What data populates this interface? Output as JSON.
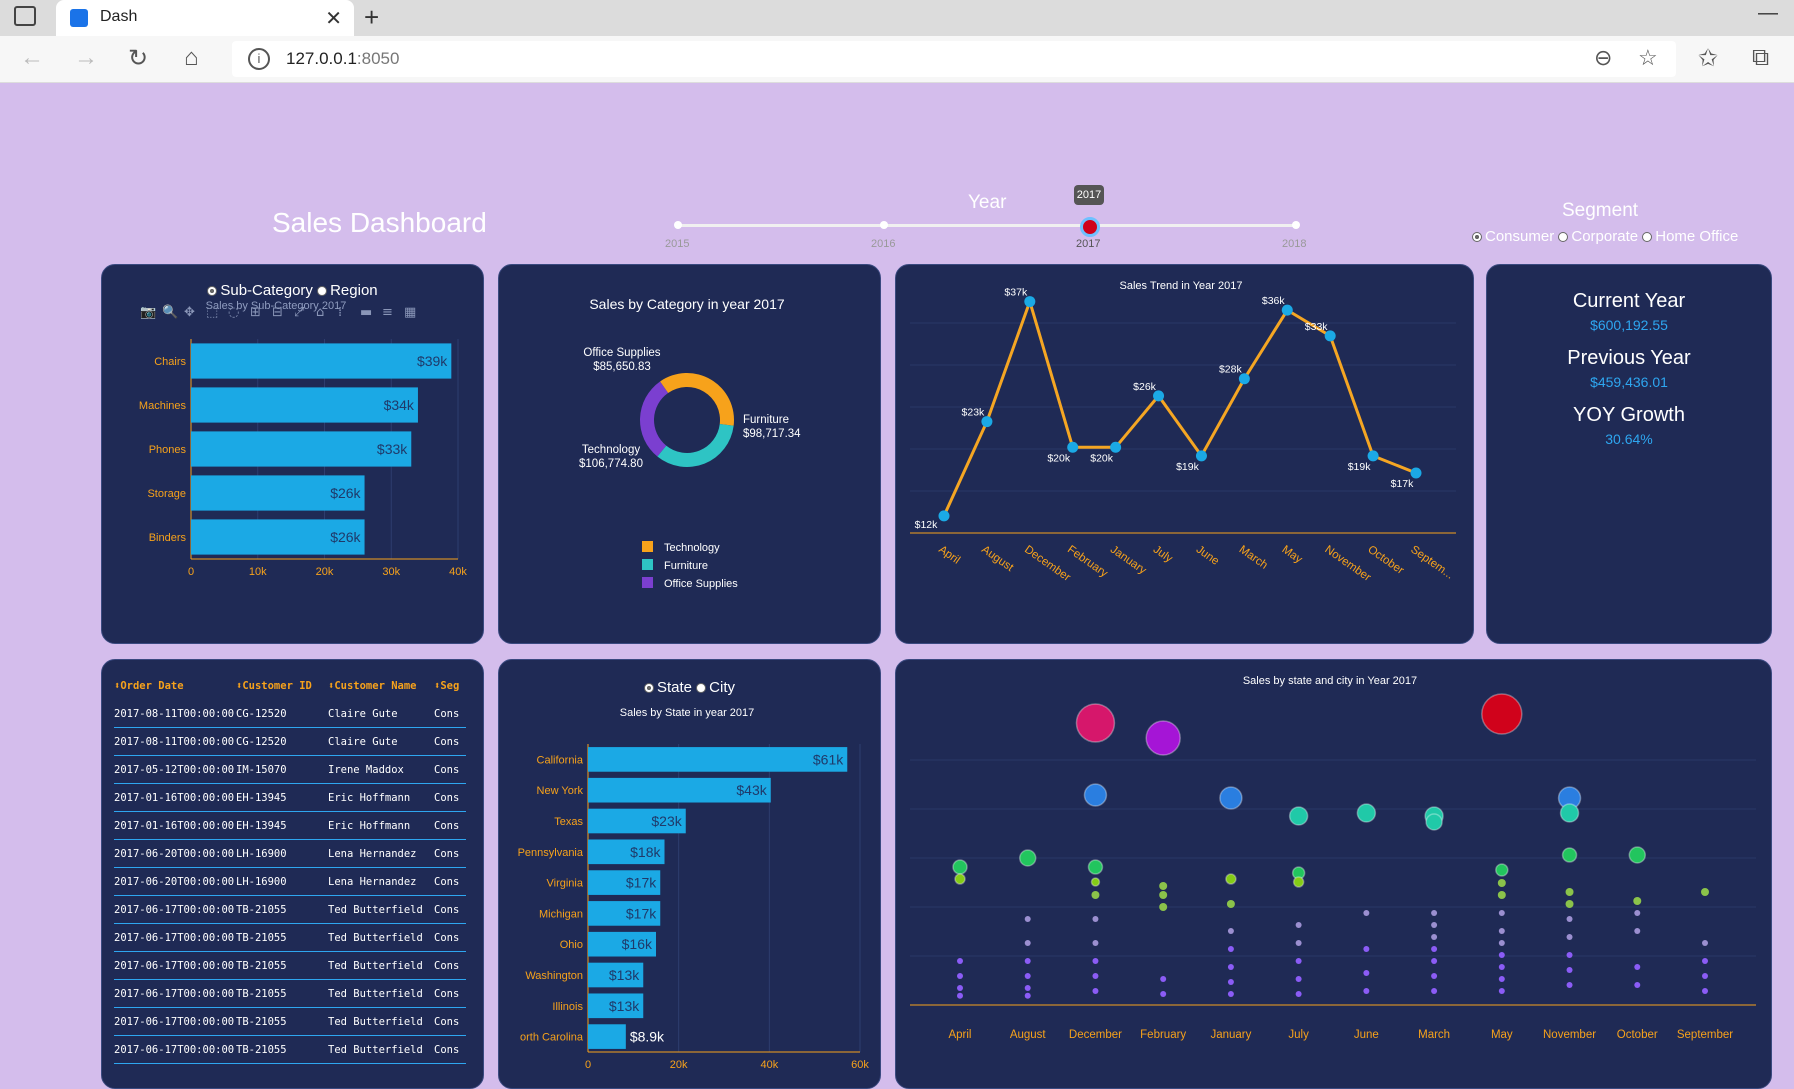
{
  "browser": {
    "tab_title": "Dash",
    "url_host": "127.0.0.1",
    "url_port": ":8050"
  },
  "header": {
    "title": "Sales Dashboard"
  },
  "year_slider": {
    "label": "Year",
    "marks": [
      "2015",
      "2016",
      "2017",
      "2018"
    ],
    "selected": "2017"
  },
  "segment": {
    "label": "Segment",
    "options": [
      "Consumer",
      "Corporate",
      "Home Office"
    ],
    "selected": "Consumer"
  },
  "subcat_card": {
    "radio_options": [
      "Sub-Category",
      "Region"
    ],
    "selected": "Sub-Category",
    "title": "Sales by Sub-Category 2017"
  },
  "kpi": {
    "current_label": "Current Year",
    "current_value": "$600,192.55",
    "previous_label": "Previous Year",
    "previous_value": "$459,436.01",
    "growth_label": "YOY Growth",
    "growth_value": "30.64%"
  },
  "table": {
    "headers": [
      "⬍Order Date",
      "⬍Customer ID",
      "⬍Customer Name",
      "⬍Seg"
    ],
    "rows": [
      [
        "2017-08-11T00:00:00",
        "CG-12520",
        "Claire Gute",
        "Cons"
      ],
      [
        "2017-08-11T00:00:00",
        "CG-12520",
        "Claire Gute",
        "Cons"
      ],
      [
        "2017-05-12T00:00:00",
        "IM-15070",
        "Irene Maddox",
        "Cons"
      ],
      [
        "2017-01-16T00:00:00",
        "EH-13945",
        "Eric Hoffmann",
        "Cons"
      ],
      [
        "2017-01-16T00:00:00",
        "EH-13945",
        "Eric Hoffmann",
        "Cons"
      ],
      [
        "2017-06-20T00:00:00",
        "LH-16900",
        "Lena Hernandez",
        "Cons"
      ],
      [
        "2017-06-20T00:00:00",
        "LH-16900",
        "Lena Hernandez",
        "Cons"
      ],
      [
        "2017-06-17T00:00:00",
        "TB-21055",
        "Ted Butterfield",
        "Cons"
      ],
      [
        "2017-06-17T00:00:00",
        "TB-21055",
        "Ted Butterfield",
        "Cons"
      ],
      [
        "2017-06-17T00:00:00",
        "TB-21055",
        "Ted Butterfield",
        "Cons"
      ],
      [
        "2017-06-17T00:00:00",
        "TB-21055",
        "Ted Butterfield",
        "Cons"
      ],
      [
        "2017-06-17T00:00:00",
        "TB-21055",
        "Ted Butterfield",
        "Cons"
      ],
      [
        "2017-06-17T00:00:00",
        "TB-21055",
        "Ted Butterfield",
        "Cons"
      ]
    ]
  },
  "state_card": {
    "radio_options": [
      "State",
      "City"
    ],
    "selected": "State"
  },
  "colors": {
    "bar": "#1ba9e5",
    "line": "#f5a623",
    "accent": "#f7a21b",
    "card": "#1f2a55"
  },
  "chart_data": [
    {
      "type": "bar",
      "orientation": "horizontal",
      "title": "Sales by Sub-Category 2017",
      "categories": [
        "Chairs",
        "Machines",
        "Phones",
        "Storage",
        "Binders"
      ],
      "values": [
        39000,
        34000,
        33000,
        26000,
        26000
      ],
      "labels": [
        "$39k",
        "$34k",
        "$33k",
        "$26k",
        "$26k"
      ],
      "xticks": [
        "0",
        "10k",
        "20k",
        "30k",
        "40k"
      ],
      "xlim": [
        0,
        40000
      ]
    },
    {
      "type": "pie",
      "title": "Sales by Category in year 2017",
      "labels": [
        "Technology",
        "Furniture",
        "Office Supplies"
      ],
      "values": [
        106774.8,
        98717.34,
        85650.83
      ],
      "value_labels": [
        "$106,774.80",
        "$98,717.34",
        "$85,650.83"
      ],
      "colors": [
        "#f7a21b",
        "#2ec4c4",
        "#7b3fd0"
      ],
      "legend": [
        "Technology",
        "Furniture",
        "Office Supplies"
      ]
    },
    {
      "type": "line",
      "title": "Sales Trend in Year 2017",
      "categories": [
        "April",
        "August",
        "December",
        "February",
        "January",
        "July",
        "June",
        "March",
        "May",
        "November",
        "October",
        "Septem..."
      ],
      "values": [
        12,
        23,
        37,
        20,
        20,
        26,
        19,
        28,
        36,
        33,
        19,
        17
      ],
      "labels": [
        "$12k",
        "$23k",
        "$37k",
        "$20k",
        "$20k",
        "$26k",
        "$19k",
        "$28k",
        "$36k",
        "$33k",
        "$19k",
        "$17k"
      ],
      "ylim": [
        10,
        38
      ]
    },
    {
      "type": "bar",
      "orientation": "horizontal",
      "title": "Sales by State in year 2017",
      "categories": [
        "California",
        "New York",
        "Texas",
        "Pennsylvania",
        "Virginia",
        "Michigan",
        "Ohio",
        "Washington",
        "Illinois",
        "orth Carolina"
      ],
      "values": [
        61000,
        43000,
        23000,
        18000,
        17000,
        17000,
        16000,
        13000,
        13000,
        8900
      ],
      "labels": [
        "$61k",
        "$43k",
        "$23k",
        "$18k",
        "$17k",
        "$17k",
        "$16k",
        "$13k",
        "$13k",
        "$8.9k"
      ],
      "xticks": [
        "0",
        "20k",
        "40k",
        "60k"
      ],
      "xlim": [
        0,
        64000
      ]
    },
    {
      "type": "scatter",
      "title": "Sales by state and city in Year 2017",
      "categories": [
        "April",
        "August",
        "December",
        "February",
        "January",
        "July",
        "June",
        "March",
        "May",
        "November",
        "October",
        "September"
      ],
      "points": [
        {
          "x": "April",
          "y": 230,
          "r": 7,
          "c": "#22c55e"
        },
        {
          "x": "April",
          "y": 210,
          "r": 5,
          "c": "#84cc16"
        },
        {
          "x": "August",
          "y": 245,
          "r": 8,
          "c": "#22c55e"
        },
        {
          "x": "December",
          "y": 470,
          "r": 19,
          "c": "#d6176b"
        },
        {
          "x": "December",
          "y": 350,
          "r": 11,
          "c": "#2a7ee0"
        },
        {
          "x": "December",
          "y": 230,
          "r": 7,
          "c": "#22c55e"
        },
        {
          "x": "December",
          "y": 205,
          "r": 4,
          "c": "#84cc16"
        },
        {
          "x": "February",
          "y": 445,
          "r": 17,
          "c": "#a515d6"
        },
        {
          "x": "January",
          "y": 345,
          "r": 11,
          "c": "#2a7ee0"
        },
        {
          "x": "January",
          "y": 210,
          "r": 5,
          "c": "#84cc16"
        },
        {
          "x": "July",
          "y": 315,
          "r": 9,
          "c": "#20c9a8"
        },
        {
          "x": "July",
          "y": 220,
          "r": 6,
          "c": "#22c55e"
        },
        {
          "x": "July",
          "y": 205,
          "r": 5,
          "c": "#84cc16"
        },
        {
          "x": "June",
          "y": 320,
          "r": 9,
          "c": "#20c9a8"
        },
        {
          "x": "March",
          "y": 315,
          "r": 9,
          "c": "#20c9a8"
        },
        {
          "x": "March",
          "y": 305,
          "r": 8,
          "c": "#20c9a8"
        },
        {
          "x": "May",
          "y": 485,
          "r": 20,
          "c": "#d0021b"
        },
        {
          "x": "May",
          "y": 225,
          "r": 6,
          "c": "#22c55e"
        },
        {
          "x": "November",
          "y": 345,
          "r": 11,
          "c": "#2a7ee0"
        },
        {
          "x": "November",
          "y": 320,
          "r": 9,
          "c": "#20c9a8"
        },
        {
          "x": "November",
          "y": 250,
          "r": 7,
          "c": "#22c55e"
        },
        {
          "x": "October",
          "y": 250,
          "r": 8,
          "c": "#22c55e"
        }
      ],
      "small_points": [
        {
          "x": "April",
          "ys": [
            70,
            45,
            25,
            12
          ]
        },
        {
          "x": "August",
          "ys": [
            140,
            100,
            70,
            45,
            25,
            12
          ]
        },
        {
          "x": "December",
          "ys": [
            180,
            140,
            100,
            70,
            45,
            20
          ]
        },
        {
          "x": "February",
          "ys": [
            195,
            180,
            160,
            40,
            15
          ]
        },
        {
          "x": "January",
          "ys": [
            165,
            120,
            90,
            60,
            35,
            15
          ]
        },
        {
          "x": "July",
          "ys": [
            130,
            100,
            70,
            40,
            15
          ]
        },
        {
          "x": "June",
          "ys": [
            150,
            90,
            50,
            20
          ]
        },
        {
          "x": "March",
          "ys": [
            150,
            130,
            110,
            90,
            70,
            45,
            20
          ]
        },
        {
          "x": "May",
          "ys": [
            200,
            180,
            150,
            120,
            100,
            80,
            60,
            40,
            20
          ]
        },
        {
          "x": "November",
          "ys": [
            185,
            165,
            140,
            110,
            80,
            55,
            30
          ]
        },
        {
          "x": "October",
          "ys": [
            170,
            150,
            120,
            60,
            30
          ]
        },
        {
          "x": "September",
          "ys": [
            185,
            100,
            70,
            45,
            20
          ]
        }
      ]
    }
  ]
}
